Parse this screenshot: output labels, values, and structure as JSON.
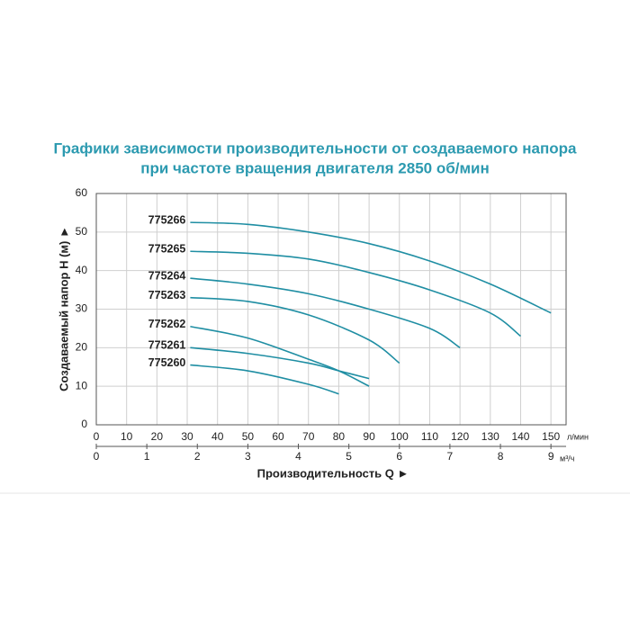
{
  "chart_data": {
    "type": "line",
    "title": [
      "Графики зависимости производительности от создаваемого напора",
      "при частоте вращения двигателя 2850 об/мин"
    ],
    "y_label": "Создаваемый напор H (м) ►",
    "x_label": "Производительность Q ►",
    "x_unit": "л/мин",
    "x2_unit": "м³/ч",
    "xlim": [
      0,
      155
    ],
    "xticks": [
      0,
      10,
      20,
      30,
      40,
      50,
      60,
      70,
      80,
      90,
      100,
      110,
      120,
      130,
      140,
      150
    ],
    "x2lim": [
      0,
      9.3
    ],
    "x2ticks": [
      0,
      1,
      2,
      3,
      4,
      5,
      6,
      7,
      8,
      9
    ],
    "ylim": [
      0,
      60
    ],
    "yticks": [
      0,
      10,
      20,
      30,
      40,
      50,
      60
    ],
    "grid": true,
    "color": "#1f8ea3",
    "series": [
      {
        "name": "775266",
        "x": [
          31,
          50,
          70,
          90,
          110,
          130,
          150
        ],
        "values": [
          52.5,
          52,
          50,
          47,
          42.5,
          36.5,
          29
        ]
      },
      {
        "name": "775265",
        "x": [
          31,
          50,
          70,
          90,
          110,
          130,
          140
        ],
        "values": [
          45,
          44.5,
          43,
          39.5,
          35,
          29,
          23
        ]
      },
      {
        "name": "775264",
        "x": [
          31,
          50,
          70,
          90,
          110,
          120
        ],
        "values": [
          38,
          36.5,
          34,
          30,
          25,
          20
        ]
      },
      {
        "name": "775263",
        "x": [
          31,
          50,
          70,
          90,
          100
        ],
        "values": [
          33,
          32,
          28.5,
          22,
          16
        ]
      },
      {
        "name": "775262",
        "x": [
          31,
          50,
          70,
          80,
          90
        ],
        "values": [
          25.5,
          22.5,
          17,
          14,
          10
        ]
      },
      {
        "name": "775261",
        "x": [
          31,
          50,
          70,
          80,
          90
        ],
        "values": [
          20,
          18.5,
          16,
          14,
          12
        ]
      },
      {
        "name": "775260",
        "x": [
          31,
          50,
          70,
          80
        ],
        "values": [
          15.5,
          14,
          10.5,
          8
        ]
      }
    ]
  }
}
